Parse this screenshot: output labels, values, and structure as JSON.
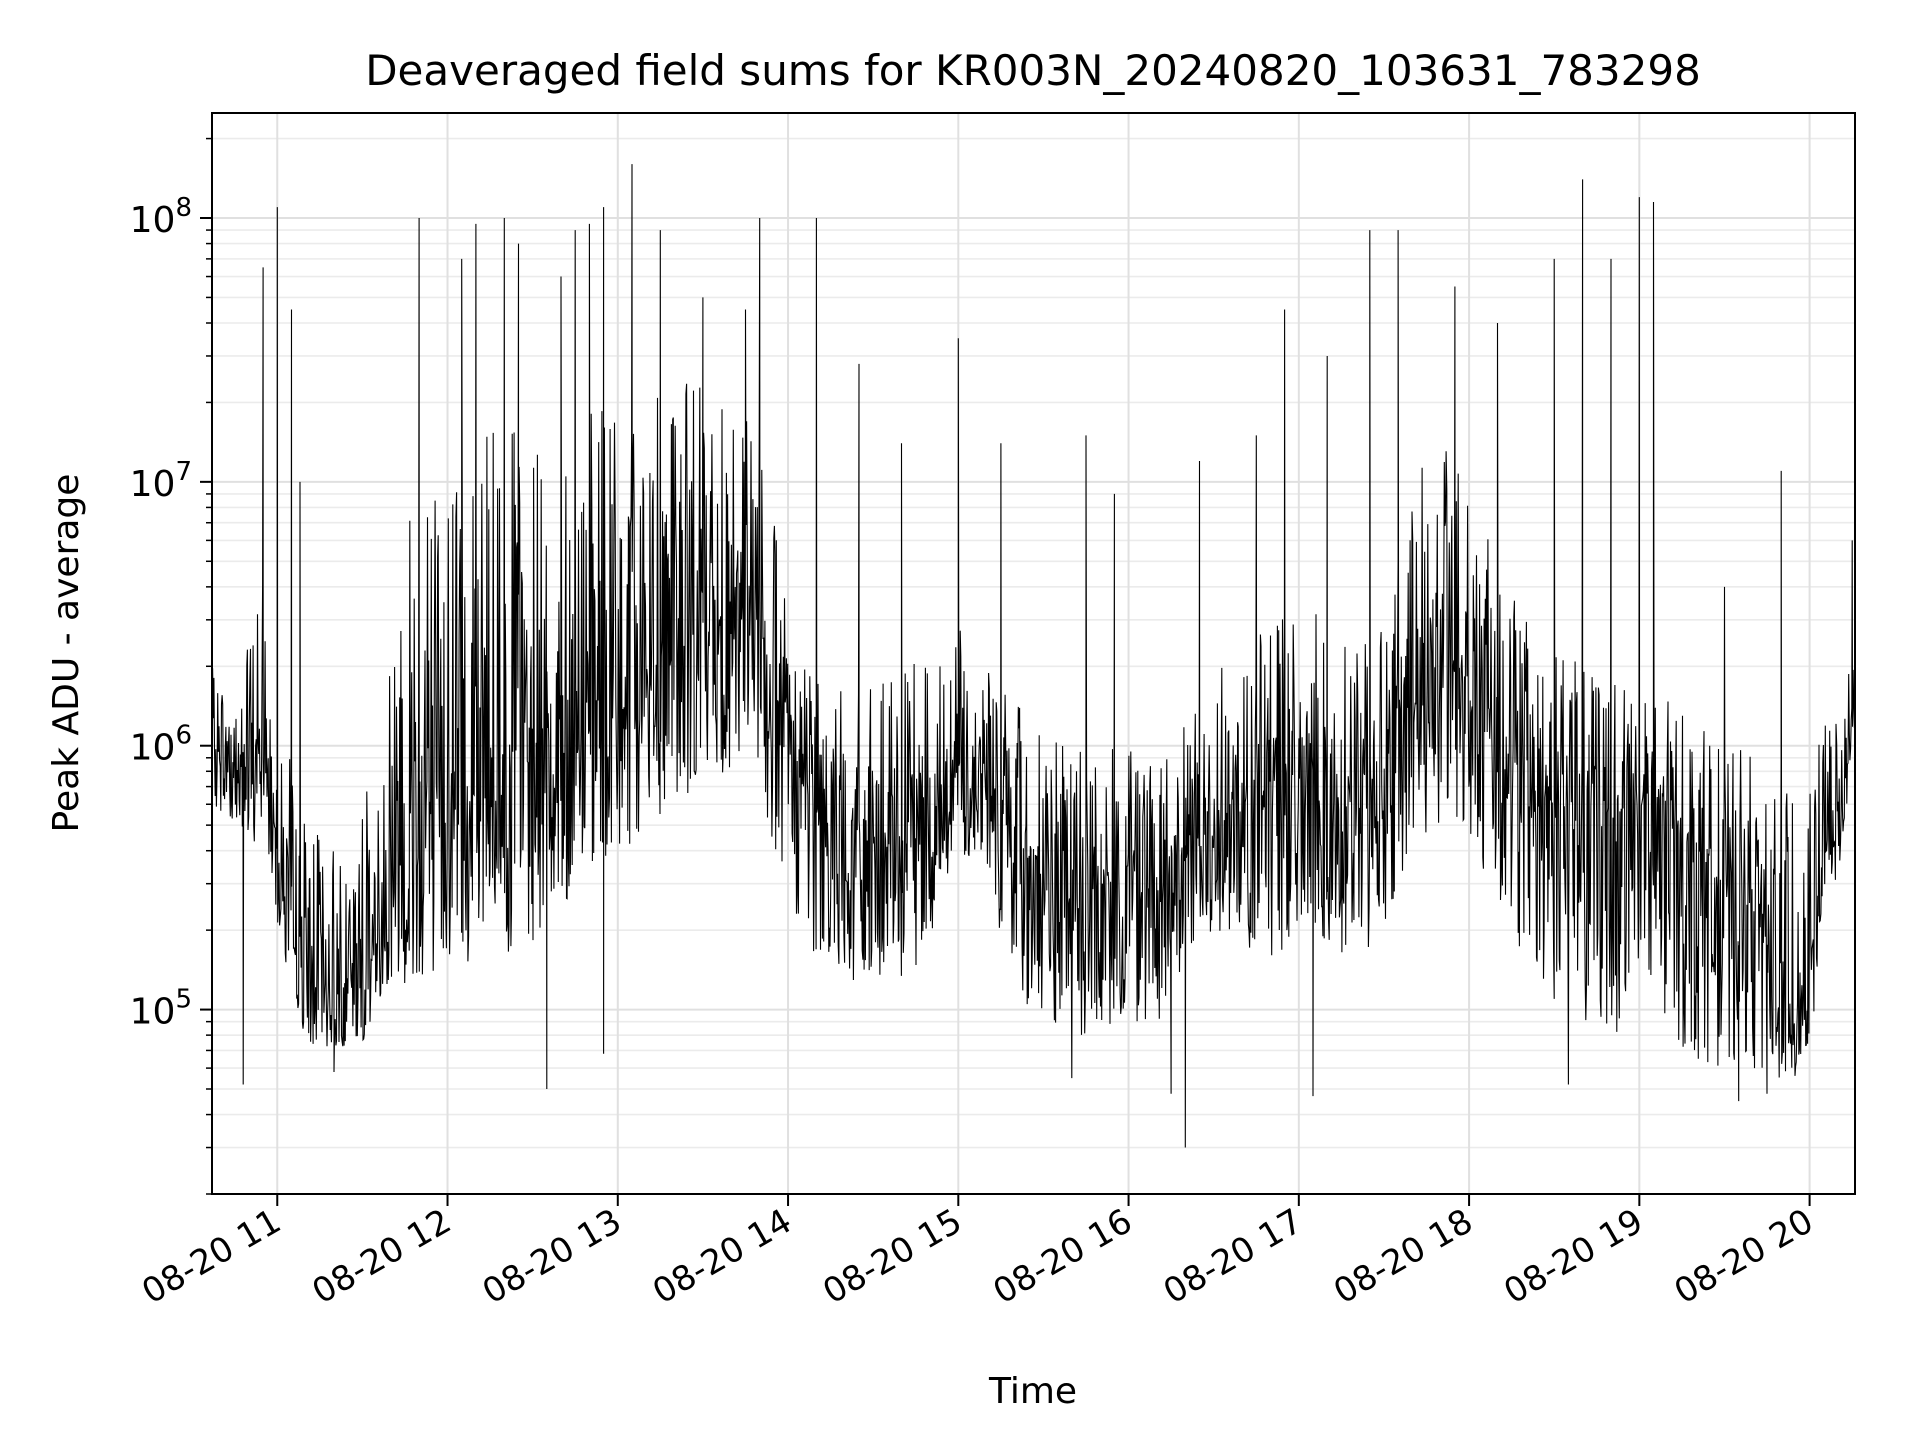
{
  "chart_data": {
    "type": "line",
    "title": "Deaveraged field sums for KR003N_20240820_103631_783298",
    "xlabel": "Time",
    "ylabel": "Peak ADU - average",
    "yscale": "log",
    "xlim": [
      "08-20 10:37",
      "08-20 20:16"
    ],
    "ylim": [
      20000,
      250000000
    ],
    "grid": true,
    "line_color": "#000000",
    "x_ticks": [
      "08-20 11",
      "08-20 12",
      "08-20 13",
      "08-20 14",
      "08-20 15",
      "08-20 16",
      "08-20 17",
      "08-20 18",
      "08-20 19",
      "08-20 20"
    ],
    "y_ticks": [
      {
        "base": "10",
        "exp": "5",
        "value": 100000
      },
      {
        "base": "10",
        "exp": "6",
        "value": 1000000
      },
      {
        "base": "10",
        "exp": "7",
        "value": 10000000
      },
      {
        "base": "10",
        "exp": "8",
        "value": 100000000
      }
    ],
    "series": [
      {
        "x": [
          "10:37",
          "10:45",
          "10:50",
          "10:55",
          "11:00",
          "11:05",
          "11:10",
          "11:20",
          "11:30",
          "11:35",
          "11:40",
          "11:45",
          "11:50",
          "11:55",
          "12:00",
          "12:10",
          "12:20",
          "12:30",
          "12:40",
          "12:50",
          "13:00",
          "13:10",
          "13:20",
          "13:30",
          "13:40",
          "13:50",
          "14:00",
          "14:10",
          "14:20",
          "14:30",
          "14:40",
          "14:50",
          "15:00",
          "15:10",
          "15:20",
          "15:30",
          "15:40",
          "15:50",
          "16:00",
          "16:10",
          "16:20",
          "16:30",
          "16:40",
          "16:50",
          "17:00",
          "17:10",
          "17:20",
          "17:30",
          "17:40",
          "17:50",
          "18:00",
          "18:10",
          "18:20",
          "18:30",
          "18:40",
          "18:50",
          "19:00",
          "19:10",
          "19:20",
          "19:30",
          "19:40",
          "19:50",
          "19:55",
          "20:00",
          "20:05",
          "20:10",
          "20:16"
        ],
        "baseline": [
          1000000,
          800000,
          850000,
          900000,
          400000,
          180000,
          120000,
          110000,
          130000,
          180000,
          350000,
          400000,
          500000,
          550000,
          600000,
          700000,
          800000,
          900000,
          1000000,
          1100000,
          1300000,
          1800000,
          2200000,
          2600000,
          3000000,
          3000000,
          900000,
          500000,
          450000,
          420000,
          420000,
          600000,
          800000,
          800000,
          400000,
          300000,
          250000,
          280000,
          350000,
          280000,
          380000,
          500000,
          600000,
          700000,
          750000,
          700000,
          650000,
          800000,
          1500000,
          2000000,
          1800000,
          1200000,
          700000,
          600000,
          550000,
          550000,
          600000,
          500000,
          400000,
          300000,
          250000,
          120000,
          100000,
          150000,
          380000,
          420000,
          1400000
        ],
        "low": [
          600000,
          500000,
          400000,
          450000,
          220000,
          90000,
          75000,
          70000,
          75000,
          100000,
          110000,
          120000,
          130000,
          140000,
          150000,
          150000,
          160000,
          180000,
          220000,
          250000,
          350000,
          500000,
          600000,
          700000,
          800000,
          700000,
          250000,
          150000,
          130000,
          110000,
          100000,
          180000,
          400000,
          300000,
          110000,
          90000,
          80000,
          80000,
          90000,
          80000,
          150000,
          200000,
          180000,
          150000,
          200000,
          180000,
          150000,
          200000,
          400000,
          500000,
          450000,
          250000,
          150000,
          100000,
          90000,
          80000,
          90000,
          70000,
          65000,
          60000,
          55000,
          55000,
          55000,
          60000,
          250000,
          300000,
          1000000
        ],
        "high": [
          2000000,
          1800000,
          2500000,
          5000000,
          2500000,
          800000,
          500000,
          450000,
          600000,
          1000000,
          3000000,
          8000000,
          10000000,
          12000000,
          14000000,
          15000000,
          16000000,
          16000000,
          17000000,
          18000000,
          20000000,
          22000000,
          24000000,
          25000000,
          25000000,
          22000000,
          3000000,
          2000000,
          2000000,
          1800000,
          1800000,
          2500000,
          3000000,
          3000000,
          1500000,
          1200000,
          1000000,
          1000000,
          1100000,
          900000,
          1200000,
          1800000,
          2500000,
          3000000,
          3500000,
          3000000,
          2500000,
          4000000,
          10000000,
          15000000,
          12000000,
          6000000,
          3000000,
          2500000,
          2000000,
          1800000,
          1800000,
          1500000,
          1200000,
          1100000,
          1000000,
          900000,
          800000,
          800000,
          1200000,
          1500000,
          2500000
        ]
      }
    ],
    "spikes": [
      {
        "x": "10:55",
        "y": 65000000
      },
      {
        "x": "11:00",
        "y": 110000000
      },
      {
        "x": "11:05",
        "y": 45000000
      },
      {
        "x": "11:08",
        "y": 10000000
      },
      {
        "x": "11:50",
        "y": 100000000
      },
      {
        "x": "12:05",
        "y": 70000000
      },
      {
        "x": "12:10",
        "y": 95000000
      },
      {
        "x": "12:20",
        "y": 100000000
      },
      {
        "x": "12:25",
        "y": 80000000
      },
      {
        "x": "12:40",
        "y": 60000000
      },
      {
        "x": "12:45",
        "y": 90000000
      },
      {
        "x": "12:50",
        "y": 95000000
      },
      {
        "x": "12:55",
        "y": 110000000
      },
      {
        "x": "13:05",
        "y": 160000000
      },
      {
        "x": "13:15",
        "y": 90000000
      },
      {
        "x": "13:30",
        "y": 50000000
      },
      {
        "x": "13:45",
        "y": 45000000
      },
      {
        "x": "13:50",
        "y": 100000000
      },
      {
        "x": "14:10",
        "y": 100000000
      },
      {
        "x": "14:25",
        "y": 28000000
      },
      {
        "x": "14:40",
        "y": 14000000
      },
      {
        "x": "15:00",
        "y": 35000000
      },
      {
        "x": "15:15",
        "y": 14000000
      },
      {
        "x": "15:45",
        "y": 15000000
      },
      {
        "x": "15:55",
        "y": 9000000
      },
      {
        "x": "16:25",
        "y": 12000000
      },
      {
        "x": "16:45",
        "y": 15000000
      },
      {
        "x": "16:55",
        "y": 45000000
      },
      {
        "x": "17:10",
        "y": 30000000
      },
      {
        "x": "17:25",
        "y": 90000000
      },
      {
        "x": "17:35",
        "y": 90000000
      },
      {
        "x": "17:55",
        "y": 55000000
      },
      {
        "x": "18:10",
        "y": 40000000
      },
      {
        "x": "18:30",
        "y": 70000000
      },
      {
        "x": "18:40",
        "y": 140000000
      },
      {
        "x": "18:50",
        "y": 70000000
      },
      {
        "x": "19:00",
        "y": 120000000
      },
      {
        "x": "19:05",
        "y": 115000000
      },
      {
        "x": "19:30",
        "y": 4000000
      },
      {
        "x": "19:50",
        "y": 11000000
      },
      {
        "x": "20:15",
        "y": 6000000
      }
    ],
    "dips": [
      {
        "x": "10:48",
        "y": 52000
      },
      {
        "x": "11:20",
        "y": 58000
      },
      {
        "x": "12:35",
        "y": 50000
      },
      {
        "x": "12:55",
        "y": 68000
      },
      {
        "x": "15:40",
        "y": 55000
      },
      {
        "x": "16:15",
        "y": 48000
      },
      {
        "x": "16:20",
        "y": 30000
      },
      {
        "x": "17:05",
        "y": 47000
      },
      {
        "x": "18:35",
        "y": 52000
      },
      {
        "x": "19:35",
        "y": 45000
      },
      {
        "x": "19:45",
        "y": 48000
      }
    ]
  }
}
